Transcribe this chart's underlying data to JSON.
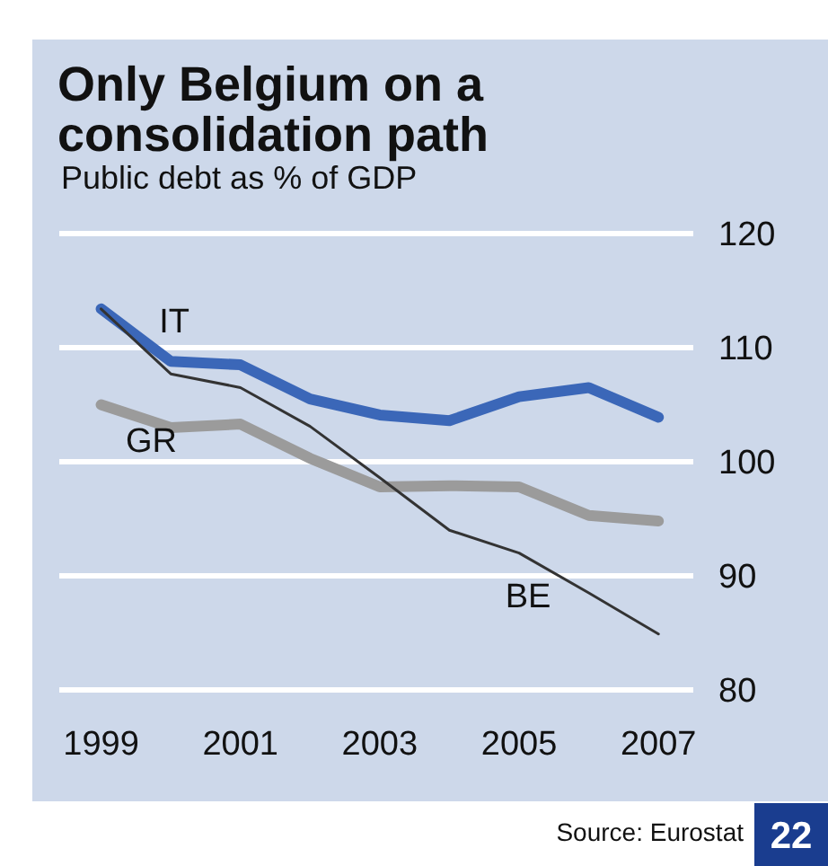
{
  "chart_data": {
    "type": "line",
    "title": "Only Belgium on a consolidation path",
    "subtitle": "Public debt as % of GDP",
    "x": [
      1999,
      2000,
      2001,
      2002,
      2003,
      2004,
      2005,
      2006,
      2007
    ],
    "series": [
      {
        "name": "IT",
        "color": "#3b67b8",
        "values": [
          113.4,
          108.8,
          108.5,
          105.5,
          104.1,
          103.6,
          105.7,
          106.5,
          103.9
        ]
      },
      {
        "name": "GR",
        "color": "#9b9b9b",
        "values": [
          105.0,
          103.0,
          103.3,
          100.3,
          97.8,
          97.9,
          97.8,
          95.3,
          94.8
        ]
      },
      {
        "name": "BE",
        "color": "#333333",
        "values": [
          113.4,
          107.7,
          106.5,
          103.1,
          98.6,
          94.0,
          92.0,
          88.5,
          84.9
        ]
      }
    ],
    "xlim": [
      1998.4,
      2007.5
    ],
    "xticks": [
      1999,
      2001,
      2003,
      2005,
      2007
    ],
    "ylim": [
      80,
      120
    ],
    "yticks": [
      80,
      90,
      100,
      110,
      120
    ],
    "grid": "y",
    "annotations": [
      "Source: Eurostat",
      "22"
    ]
  }
}
